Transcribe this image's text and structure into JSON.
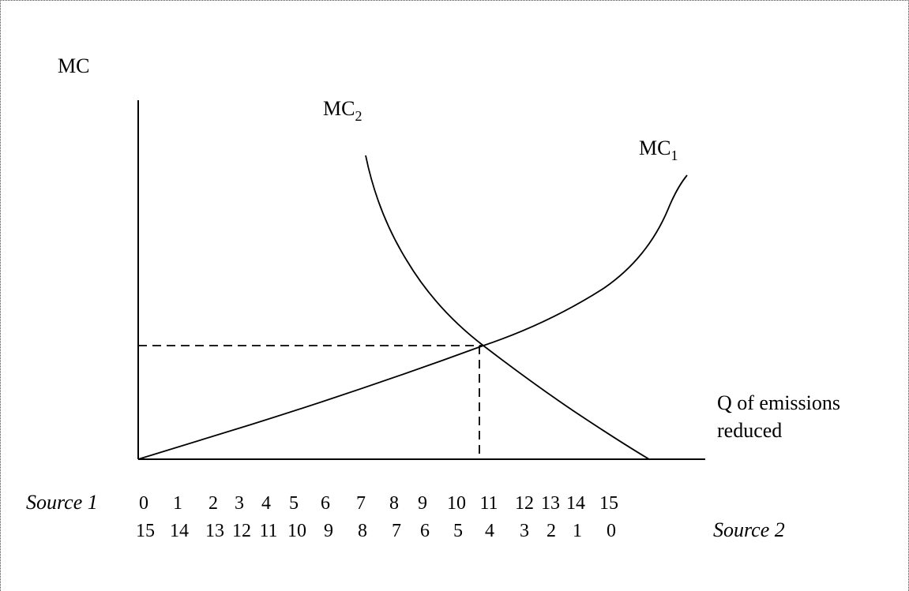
{
  "chart_data": {
    "type": "line",
    "ylabel": "MC",
    "xlabel": "Q of emissions reduced",
    "series": [
      {
        "name": "MC1",
        "label_main": "MC",
        "label_sub": "1",
        "shape": "increasing-convex",
        "x": [
          0,
          3,
          6,
          10,
          13,
          15
        ],
        "y": [
          0,
          0.9,
          1.9,
          3.3,
          5.3,
          8.2
        ]
      },
      {
        "name": "MC2",
        "label_main": "MC",
        "label_sub": "2",
        "shape": "decreasing-convex",
        "x": [
          6.7,
          8,
          10,
          12,
          14.5
        ],
        "y": [
          8.4,
          5.4,
          3.3,
          1.8,
          0
        ]
      }
    ],
    "equilibrium": {
      "x": 10,
      "y": 3.3
    },
    "source1_label": "Source 1",
    "source2_label": "Source 2",
    "source1_ticks": [
      "0",
      "1",
      "2",
      "3",
      "4",
      "5",
      "6",
      "7",
      "8",
      "9",
      "10",
      "11",
      "12",
      "13",
      "14",
      "15"
    ],
    "source2_ticks": [
      "15",
      "14",
      "13",
      "12",
      "11",
      "10",
      "9",
      "8",
      "7",
      "6",
      "5",
      "4",
      "3",
      "2",
      "1",
      "0"
    ],
    "xlim": [
      0,
      15
    ]
  }
}
